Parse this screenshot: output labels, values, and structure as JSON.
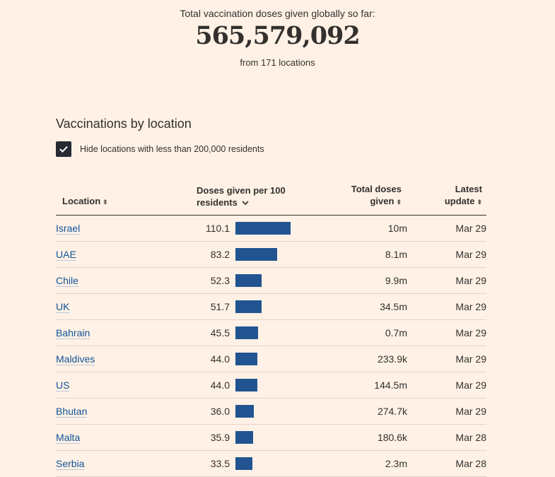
{
  "header": {
    "caption": "Total vaccination doses given globally so far:",
    "total": "565,579,092",
    "subtitle": "from 171 locations"
  },
  "section_title": "Vaccinations by location",
  "filter": {
    "checked": true,
    "label": "Hide locations with less than 200,000 residents"
  },
  "columns": {
    "location": "Location",
    "doses_line1": "Doses given per 100",
    "doses_line2": "residents",
    "total_line1": "Total doses",
    "total_line2": "given",
    "latest_line1": "Latest",
    "latest_line2": "update"
  },
  "icons": {
    "sort": "sort-arrows-icon",
    "sorted_desc": "chevron-down-icon",
    "check": "check-icon"
  },
  "colors": {
    "bar": "#215490",
    "link": "#0f5499",
    "background": "#fff1e5"
  },
  "rows": [
    {
      "location": "Israel",
      "doses": "110.1",
      "total": "10m",
      "latest": "Mar 29"
    },
    {
      "location": "UAE",
      "doses": "83.2",
      "total": "8.1m",
      "latest": "Mar 29"
    },
    {
      "location": "Chile",
      "doses": "52.3",
      "total": "9.9m",
      "latest": "Mar 29"
    },
    {
      "location": "UK",
      "doses": "51.7",
      "total": "34.5m",
      "latest": "Mar 29"
    },
    {
      "location": "Bahrain",
      "doses": "45.5",
      "total": "0.7m",
      "latest": "Mar 29"
    },
    {
      "location": "Maldives",
      "doses": "44.0",
      "total": "233.9k",
      "latest": "Mar 29"
    },
    {
      "location": "US",
      "doses": "44.0",
      "total": "144.5m",
      "latest": "Mar 29"
    },
    {
      "location": "Bhutan",
      "doses": "36.0",
      "total": "274.7k",
      "latest": "Mar 29"
    },
    {
      "location": "Malta",
      "doses": "35.9",
      "total": "180.6k",
      "latest": "Mar 28"
    },
    {
      "location": "Serbia",
      "doses": "33.5",
      "total": "2.3m",
      "latest": "Mar 28"
    }
  ]
}
